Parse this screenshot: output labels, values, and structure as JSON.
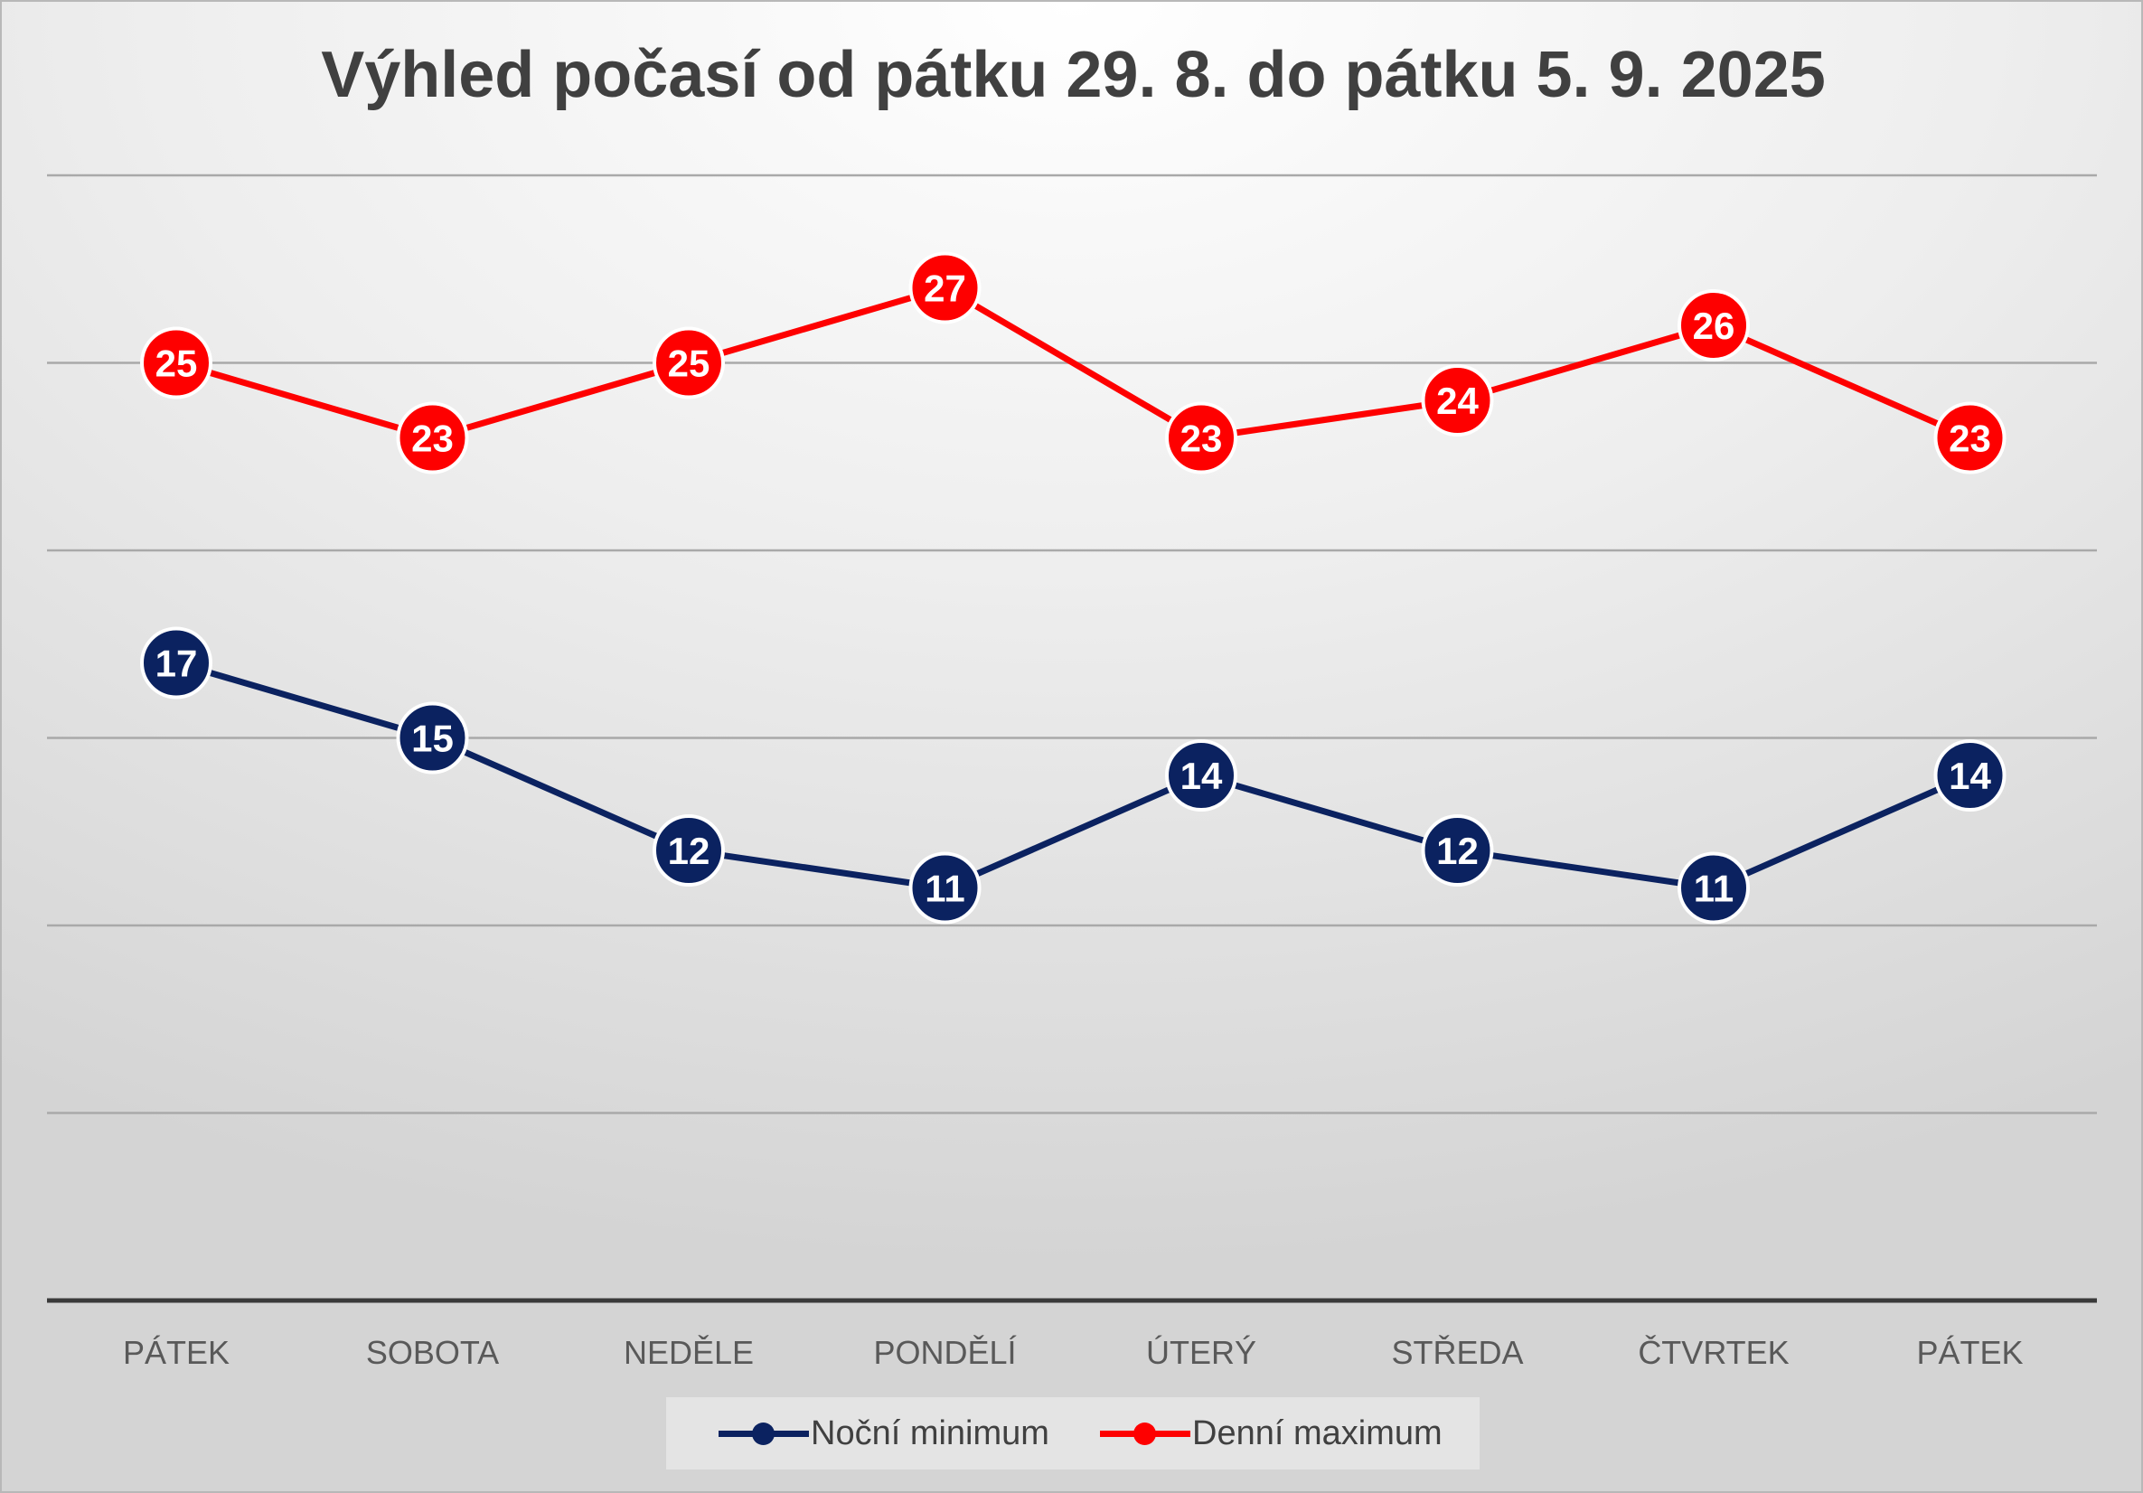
{
  "chart_data": {
    "type": "line",
    "title": "Výhled počasí od pátku 29. 8. do pátku 5. 9. 2025",
    "categories": [
      "PÁTEK",
      "SOBOTA",
      "NEDĚLE",
      "PONDĚLÍ",
      "ÚTERÝ",
      "STŘEDA",
      "ČTVRTEK",
      "PÁTEK"
    ],
    "series": [
      {
        "name": "Noční minimum",
        "color": "#0b2260",
        "values": [
          17,
          15,
          12,
          11,
          14,
          12,
          11,
          14
        ]
      },
      {
        "name": "Denní maximum",
        "color": "#fe0000",
        "values": [
          25,
          23,
          25,
          27,
          23,
          24,
          26,
          23
        ]
      }
    ],
    "ylim": [
      0,
      30
    ],
    "grid": true,
    "legend": "bottom",
    "data_labels": true
  }
}
